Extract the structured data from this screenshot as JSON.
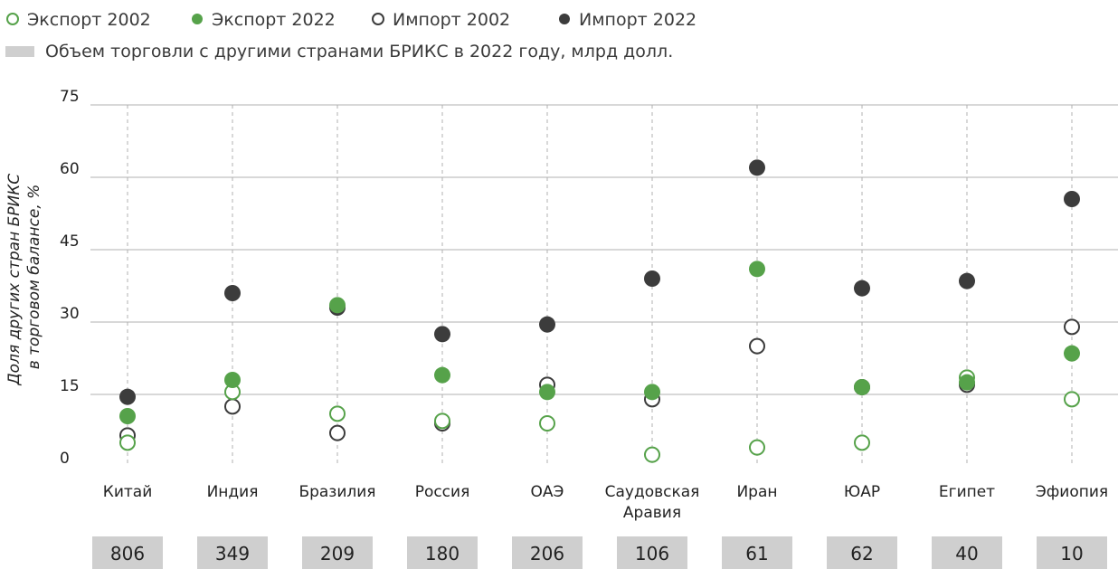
{
  "legend": {
    "items": [
      {
        "label": "Экспорт 2002",
        "series": "export_2002"
      },
      {
        "label": "Экспорт 2022",
        "series": "export_2022"
      },
      {
        "label": "Импорт 2002",
        "series": "import_2002"
      },
      {
        "label": "Импорт 2022",
        "series": "import_2022"
      }
    ],
    "volume_label": "Объем торговли с другими странами БРИКС в 2022 году, млрд долл."
  },
  "colors": {
    "green": "#56a24a",
    "dark": "#3c3c3c",
    "grid": "#b0b0b0",
    "box": "#cfcfcf"
  },
  "chart_data": {
    "type": "scatter",
    "ylabel_line1": "Доля других стран БРИКС",
    "ylabel_line2": "в торговом балансе, %",
    "ylim": [
      0,
      75
    ],
    "yticks": [
      0,
      15,
      30,
      45,
      60,
      75
    ],
    "ytick_labels": [
      "0",
      "15",
      "30",
      "45",
      "60",
      "75"
    ],
    "categories": [
      {
        "line1": "Китай",
        "line2": ""
      },
      {
        "line1": "Индия",
        "line2": ""
      },
      {
        "line1": "Бразилия",
        "line2": ""
      },
      {
        "line1": "Россия",
        "line2": ""
      },
      {
        "line1": "ОАЭ",
        "line2": ""
      },
      {
        "line1": "Саудовская",
        "line2": "Аравия"
      },
      {
        "line1": "Иран",
        "line2": ""
      },
      {
        "line1": "ЮАР",
        "line2": ""
      },
      {
        "line1": "Египет",
        "line2": ""
      },
      {
        "line1": "Эфиопия",
        "line2": ""
      }
    ],
    "series": [
      {
        "key": "import_2022",
        "values": [
          14.5,
          36,
          33,
          27.5,
          29.5,
          39,
          62,
          37,
          38.5,
          55.5
        ]
      },
      {
        "key": "import_2002",
        "values": [
          6.5,
          12.5,
          7,
          9,
          17,
          14,
          25,
          16.5,
          17,
          29
        ]
      },
      {
        "key": "export_2002",
        "values": [
          5,
          15.5,
          11,
          9.5,
          9,
          2.5,
          4,
          5,
          18.5,
          14
        ]
      },
      {
        "key": "export_2022",
        "values": [
          10.5,
          18,
          33.5,
          19,
          15.5,
          15.5,
          41,
          16.5,
          17.5,
          23.5
        ]
      }
    ],
    "volume": [
      "806",
      "349",
      "209",
      "180",
      "206",
      "106",
      "61",
      "62",
      "40",
      "10"
    ],
    "grid": true,
    "legend_position": "top-left"
  }
}
